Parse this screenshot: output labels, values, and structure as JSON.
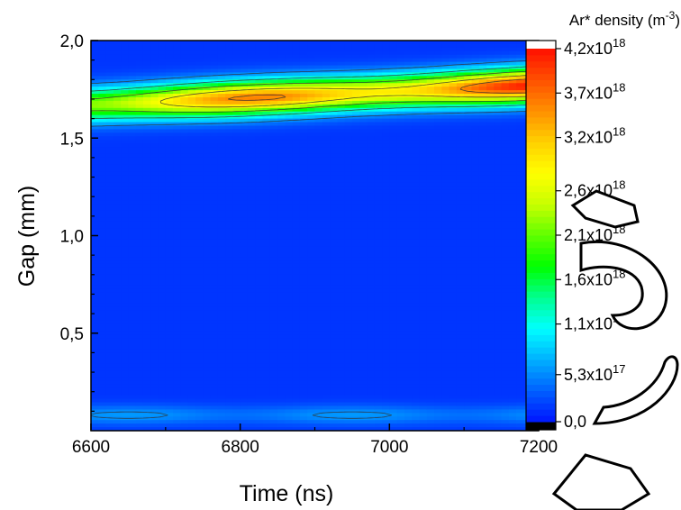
{
  "chart_data": {
    "type": "heatmap",
    "subtype": "filled-contour",
    "xlabel": "Time (ns)",
    "ylabel": "Gap (mm)",
    "xlim": [
      6600,
      7200
    ],
    "ylim": [
      0,
      2.0
    ],
    "x_ticks": [
      {
        "value": 6600,
        "label": "6600"
      },
      {
        "value": 6800,
        "label": "6800"
      },
      {
        "value": 7000,
        "label": "7000"
      },
      {
        "value": 7200,
        "label": "7200"
      }
    ],
    "y_ticks": [
      {
        "value": 0.5,
        "label": "0,5"
      },
      {
        "value": 1.0,
        "label": "1,0"
      },
      {
        "value": 1.5,
        "label": "1,5"
      },
      {
        "value": 2.0,
        "label": "2,0"
      }
    ],
    "colorbar": {
      "title_parts": {
        "main": "Ar* density (m",
        "sup": "-3",
        "close": ")"
      },
      "min": 0,
      "max": 4.2e+18,
      "ticks": [
        {
          "value": 0,
          "mantissa": "0,0",
          "exponent": ""
        },
        {
          "value": 5.3e+17,
          "mantissa": "5,3x10",
          "exponent": "17"
        },
        {
          "value": 1.1e+18,
          "mantissa": "1,1x10",
          "exponent": "18"
        },
        {
          "value": 1.6e+18,
          "mantissa": "1,6x10",
          "exponent": "18"
        },
        {
          "value": 2.1e+18,
          "mantissa": "2,1x10",
          "exponent": "18"
        },
        {
          "value": 2.6e+18,
          "mantissa": "2,6x10",
          "exponent": "18"
        },
        {
          "value": 3.2e+18,
          "mantissa": "3,2x10",
          "exponent": "18"
        },
        {
          "value": 3.7e+18,
          "mantissa": "3,7x10",
          "exponent": "18"
        },
        {
          "value": 4.2e+18,
          "mantissa": "4,2x10",
          "exponent": "18"
        }
      ],
      "colors": [
        "#000000",
        "#0014ff",
        "#0060ff",
        "#00b0ff",
        "#00ffff",
        "#00ff90",
        "#00ff00",
        "#60ff00",
        "#c8ff00",
        "#ffff00",
        "#ffd000",
        "#ff9000",
        "#ff5000",
        "#ff1000",
        "#ffffff"
      ]
    },
    "features": {
      "background_density": 1.5e+17,
      "band_center_start_gap": 1.67,
      "band_center_end_gap": 1.77,
      "band_peak_density": [
        {
          "time": 6600,
          "value": 3e+18
        },
        {
          "time": 6800,
          "value": 3.4e+18
        },
        {
          "time": 7000,
          "value": 4e+18
        },
        {
          "time": 7200,
          "value": 4e+18
        }
      ],
      "lower_layer_gap": 0.08,
      "lower_layer_density": 4.5e+17
    }
  }
}
